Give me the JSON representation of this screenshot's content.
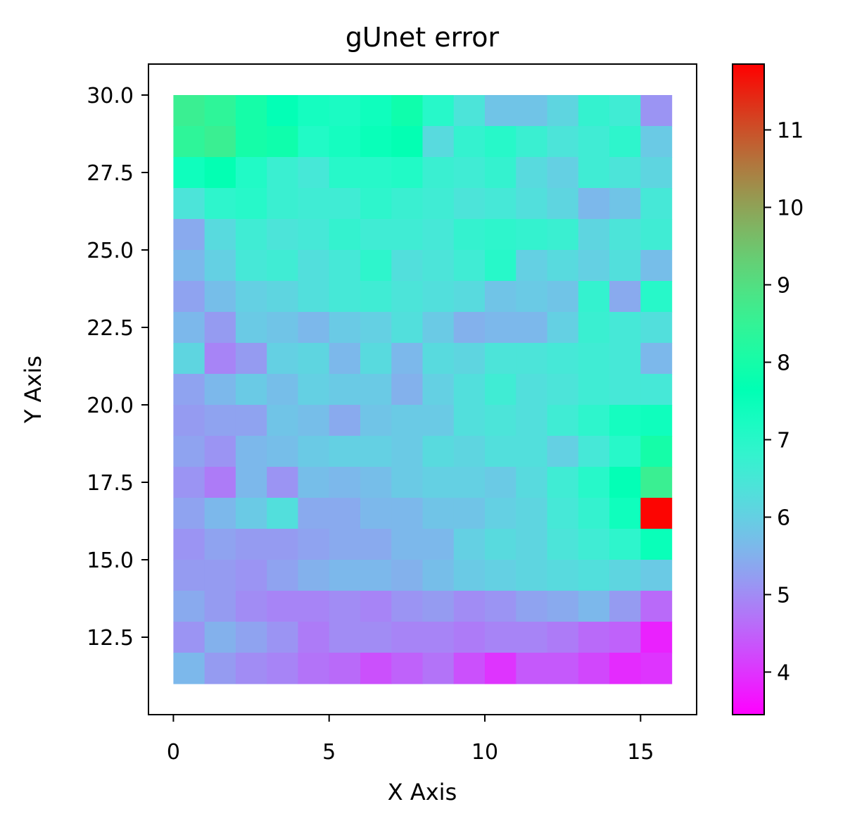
{
  "chart_data": {
    "type": "heatmap",
    "title": "gUnet error",
    "xlabel": "X Axis",
    "ylabel": "Y Axis",
    "xlim": [
      -0.8,
      16.8
    ],
    "ylim": [
      10,
      31
    ],
    "x_ticks": [
      0,
      5,
      10,
      15
    ],
    "y_ticks": [
      12.5,
      15.0,
      17.5,
      20.0,
      22.5,
      25.0,
      27.5,
      30.0
    ],
    "y_tick_labels": [
      "12.5",
      "15.0",
      "17.5",
      "20.0",
      "22.5",
      "25.0",
      "27.5",
      "30.0"
    ],
    "grid": false,
    "colormap": "rainbow",
    "colorbar": {
      "range": [
        3.45,
        11.85
      ],
      "ticks": [
        4,
        5,
        6,
        7,
        8,
        9,
        10,
        11
      ]
    },
    "cell_x": [
      0,
      1,
      2,
      3,
      4,
      5,
      6,
      7,
      8,
      9,
      10,
      11,
      12,
      13,
      14,
      15
    ],
    "cell_y": [
      29.5,
      28.5,
      27.5,
      26.5,
      25.5,
      24.5,
      23.5,
      22.5,
      21.5,
      20.5,
      19.5,
      18.5,
      17.5,
      16.5,
      15.5,
      14.5,
      13.5,
      12.5,
      11.5
    ],
    "values": [
      [
        8.6,
        8.4,
        8.0,
        7.6,
        7.3,
        7.2,
        7.4,
        7.9,
        7.0,
        6.4,
        5.8,
        5.8,
        6.1,
        6.8,
        6.6,
        5.1
      ],
      [
        8.4,
        8.6,
        8.0,
        7.9,
        7.1,
        7.3,
        7.5,
        7.7,
        6.2,
        6.8,
        7.0,
        6.7,
        6.4,
        6.6,
        6.9,
        5.9
      ],
      [
        7.4,
        7.7,
        7.1,
        6.7,
        6.5,
        7.0,
        7.0,
        7.1,
        6.7,
        6.6,
        6.8,
        6.2,
        6.0,
        6.6,
        6.4,
        6.1
      ],
      [
        6.4,
        6.9,
        7.0,
        6.7,
        6.6,
        6.6,
        6.9,
        6.7,
        6.6,
        6.4,
        6.5,
        6.3,
        6.1,
        5.6,
        5.8,
        6.5
      ],
      [
        5.4,
        6.2,
        6.6,
        6.4,
        6.5,
        6.8,
        6.6,
        6.6,
        6.5,
        6.8,
        6.9,
        6.8,
        6.7,
        6.1,
        6.4,
        6.6
      ],
      [
        5.6,
        6.0,
        6.5,
        6.6,
        6.3,
        6.5,
        6.9,
        6.3,
        6.4,
        6.6,
        7.0,
        6.0,
        6.2,
        6.0,
        6.3,
        5.7
      ],
      [
        5.3,
        5.7,
        6.0,
        6.1,
        6.3,
        6.5,
        6.6,
        6.4,
        6.3,
        6.2,
        5.8,
        5.9,
        5.8,
        6.8,
        5.4,
        7.0
      ],
      [
        5.6,
        5.2,
        5.9,
        5.8,
        5.6,
        5.9,
        6.0,
        6.3,
        5.9,
        5.5,
        5.6,
        5.6,
        6.0,
        6.7,
        6.5,
        6.3
      ],
      [
        6.1,
        4.9,
        5.2,
        6.0,
        6.1,
        5.6,
        6.2,
        5.6,
        6.2,
        6.1,
        6.4,
        6.4,
        6.5,
        6.6,
        6.5,
        5.6
      ],
      [
        5.3,
        5.6,
        5.9,
        5.7,
        6.0,
        5.9,
        5.9,
        5.5,
        6.0,
        6.3,
        6.6,
        6.3,
        6.4,
        6.6,
        6.5,
        6.5
      ],
      [
        5.2,
        5.3,
        5.3,
        5.8,
        5.7,
        5.4,
        5.8,
        5.9,
        5.9,
        6.3,
        6.4,
        6.3,
        6.6,
        6.9,
        7.3,
        7.4
      ],
      [
        5.3,
        5.1,
        5.6,
        5.7,
        5.9,
        6.0,
        6.0,
        5.9,
        6.2,
        6.1,
        6.3,
        6.3,
        6.0,
        6.5,
        7.0,
        8.0
      ],
      [
        5.1,
        4.8,
        5.6,
        5.1,
        5.7,
        5.6,
        5.7,
        5.9,
        6.0,
        6.0,
        5.9,
        6.2,
        6.6,
        7.0,
        7.6,
        8.6
      ],
      [
        5.3,
        5.6,
        5.9,
        6.3,
        5.4,
        5.4,
        5.6,
        5.6,
        5.8,
        5.8,
        6.0,
        6.1,
        6.5,
        6.8,
        7.4,
        11.8
      ],
      [
        5.1,
        5.3,
        5.2,
        5.2,
        5.3,
        5.4,
        5.4,
        5.6,
        5.6,
        6.0,
        6.2,
        6.1,
        6.4,
        6.6,
        6.9,
        7.5
      ],
      [
        5.2,
        5.2,
        5.1,
        5.3,
        5.5,
        5.6,
        5.6,
        5.5,
        5.7,
        5.9,
        6.0,
        6.1,
        6.2,
        6.3,
        6.1,
        5.9
      ],
      [
        5.4,
        5.2,
        5.0,
        4.9,
        4.9,
        5.0,
        4.9,
        5.1,
        5.2,
        5.0,
        5.1,
        5.3,
        5.4,
        5.6,
        5.2,
        4.6
      ],
      [
        5.1,
        5.5,
        5.3,
        5.1,
        4.8,
        5.0,
        5.0,
        4.9,
        4.9,
        4.8,
        4.9,
        4.9,
        4.8,
        4.6,
        4.5,
        3.8
      ],
      [
        5.6,
        5.2,
        5.0,
        4.9,
        4.7,
        4.6,
        4.3,
        4.5,
        4.7,
        4.3,
        4.0,
        4.4,
        4.4,
        4.2,
        3.9,
        4.0
      ]
    ]
  }
}
